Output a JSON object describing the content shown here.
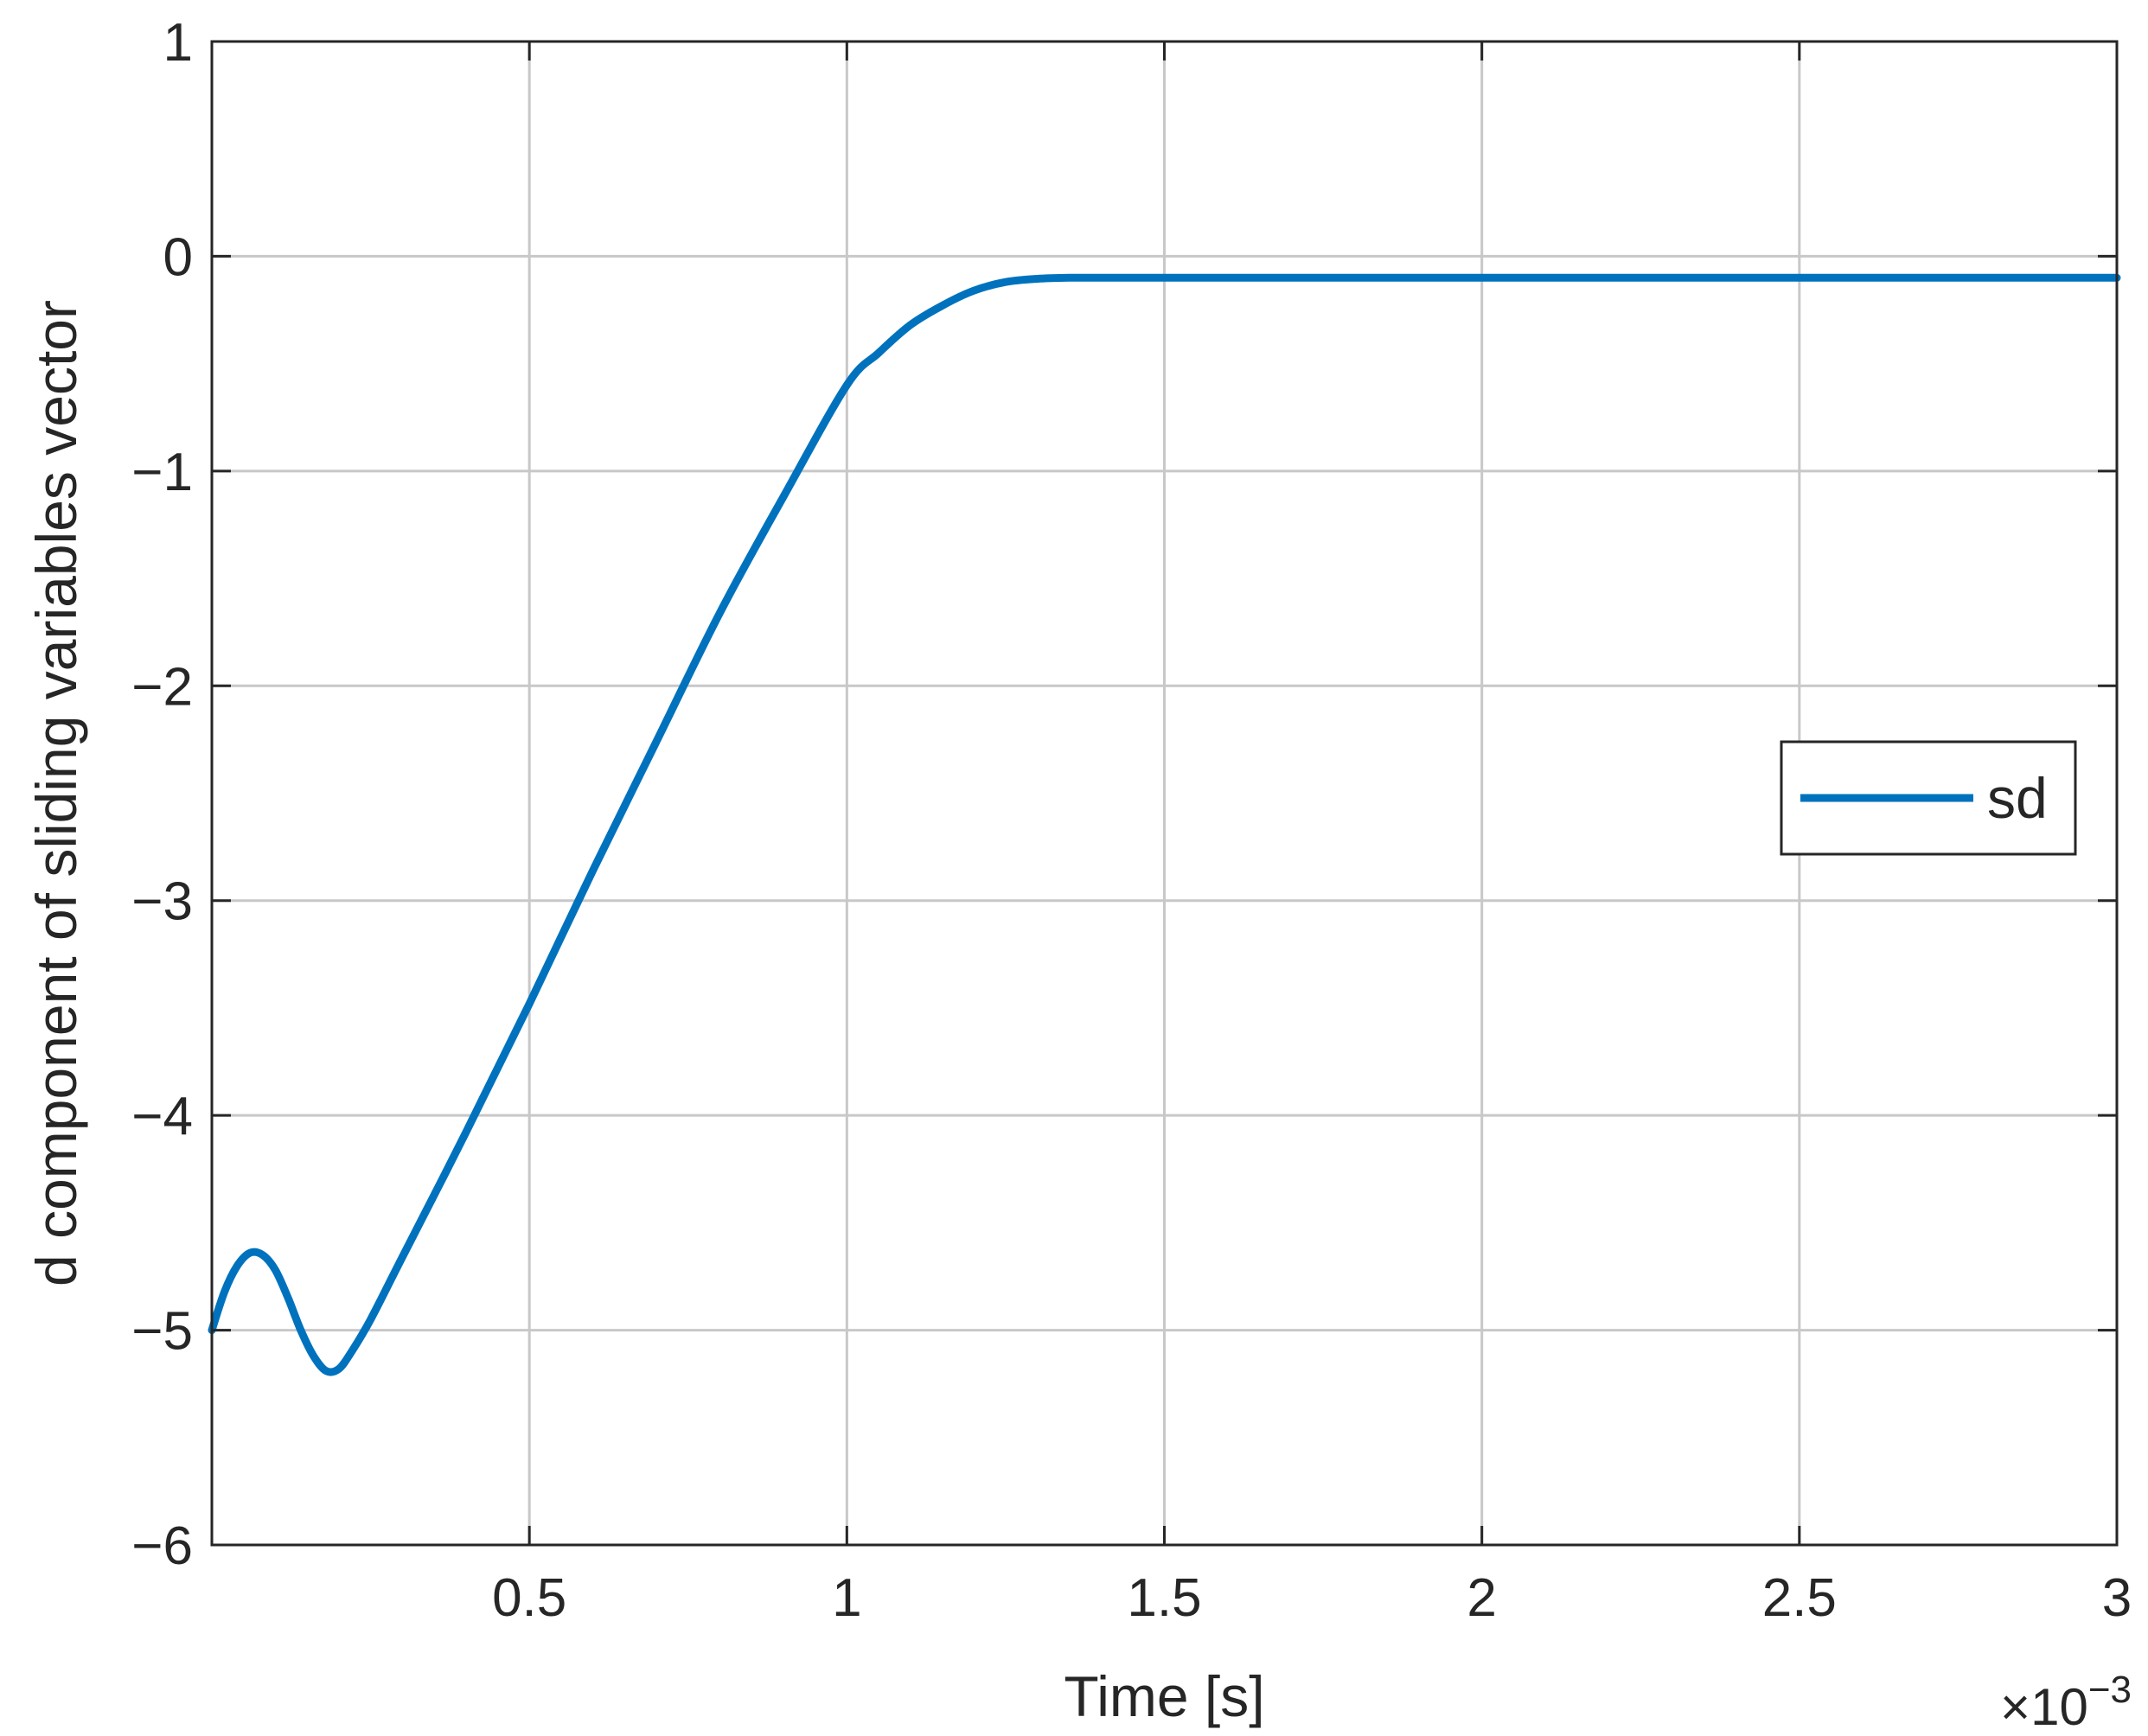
{
  "chart_data": {
    "type": "line",
    "title": "",
    "xlabel": "Time [s]",
    "ylabel": "d component of sliding variables vector",
    "x_exponent_label": "×10",
    "x_exponent_power": "−3",
    "x_scale": 0.001,
    "xlim": [
      0,
      3
    ],
    "ylim": [
      -6,
      1
    ],
    "xticks": [
      0.5,
      1,
      1.5,
      2,
      2.5,
      3
    ],
    "xtick_labels": [
      "0.5",
      "1",
      "1.5",
      "2",
      "2.5",
      "3"
    ],
    "yticks": [
      1,
      0,
      -1,
      -2,
      -3,
      -4,
      -5,
      -6
    ],
    "ytick_labels": [
      "1",
      "0",
      "−1",
      "−2",
      "−3",
      "−4",
      "−5",
      "−6"
    ],
    "grid": true,
    "legend_position": "center-right",
    "series": [
      {
        "name": "sd",
        "color": "#0072BD",
        "x": [
          0,
          0.02,
          0.04,
          0.06,
          0.08,
          0.1,
          0.12,
          0.14,
          0.16,
          0.18,
          0.2,
          0.22,
          0.25,
          0.3,
          0.4,
          0.5,
          0.6,
          0.7,
          0.8,
          0.9,
          1.0,
          1.05,
          1.1,
          1.15,
          1.2,
          1.25,
          1.3,
          1.35,
          1.4,
          1.5,
          2.0,
          2.5,
          3.0
        ],
        "y": [
          -5.0,
          -4.82,
          -4.7,
          -4.64,
          -4.65,
          -4.72,
          -4.85,
          -5.0,
          -5.12,
          -5.19,
          -5.18,
          -5.1,
          -4.95,
          -4.66,
          -4.08,
          -3.48,
          -2.86,
          -2.26,
          -1.66,
          -1.12,
          -0.6,
          -0.45,
          -0.32,
          -0.23,
          -0.16,
          -0.12,
          -0.105,
          -0.1,
          -0.1,
          -0.1,
          -0.1,
          -0.1,
          -0.1
        ]
      }
    ]
  }
}
